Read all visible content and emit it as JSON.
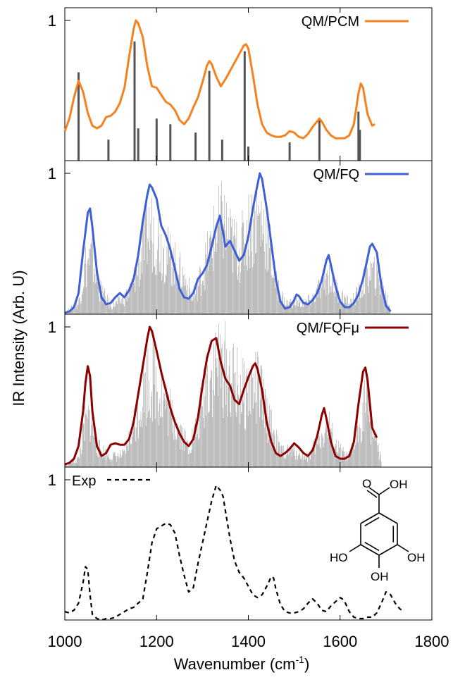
{
  "chart_data": [
    {
      "type": "line",
      "panel": "top",
      "legend": "QM/PCM",
      "color": "#f5821f",
      "ylim": [
        0,
        1
      ],
      "y_tick_label": "1",
      "sticks": [
        {
          "x": 1030,
          "h": 0.63
        },
        {
          "x": 1095,
          "h": 0.15
        },
        {
          "x": 1152,
          "h": 0.85
        },
        {
          "x": 1160,
          "h": 0.23
        },
        {
          "x": 1200,
          "h": 0.3
        },
        {
          "x": 1230,
          "h": 0.26
        },
        {
          "x": 1285,
          "h": 0.2
        },
        {
          "x": 1315,
          "h": 0.64
        },
        {
          "x": 1343,
          "h": 0.15
        },
        {
          "x": 1392,
          "h": 0.78
        },
        {
          "x": 1400,
          "h": 0.1
        },
        {
          "x": 1490,
          "h": 0.13
        },
        {
          "x": 1555,
          "h": 0.29
        },
        {
          "x": 1640,
          "h": 0.35
        },
        {
          "x": 1643,
          "h": 0.22
        }
      ],
      "series": [
        {
          "name": "QM/PCM",
          "x": [
            1000,
            1010,
            1020,
            1030,
            1040,
            1050,
            1060,
            1070,
            1080,
            1090,
            1100,
            1110,
            1120,
            1130,
            1140,
            1150,
            1155,
            1160,
            1170,
            1180,
            1190,
            1200,
            1210,
            1220,
            1230,
            1240,
            1250,
            1260,
            1270,
            1280,
            1290,
            1300,
            1310,
            1315,
            1320,
            1330,
            1340,
            1350,
            1360,
            1370,
            1380,
            1390,
            1395,
            1400,
            1410,
            1420,
            1430,
            1440,
            1450,
            1460,
            1470,
            1480,
            1490,
            1500,
            1510,
            1520,
            1530,
            1540,
            1550,
            1555,
            1560,
            1570,
            1580,
            1590,
            1600,
            1610,
            1620,
            1630,
            1640,
            1645,
            1650,
            1660,
            1670,
            1676
          ],
          "y": [
            0.21,
            0.3,
            0.45,
            0.57,
            0.49,
            0.34,
            0.25,
            0.23,
            0.25,
            0.31,
            0.32,
            0.35,
            0.41,
            0.52,
            0.74,
            0.94,
            1.0,
            0.98,
            0.88,
            0.67,
            0.53,
            0.52,
            0.47,
            0.42,
            0.4,
            0.36,
            0.29,
            0.26,
            0.3,
            0.38,
            0.45,
            0.56,
            0.68,
            0.71,
            0.69,
            0.6,
            0.53,
            0.58,
            0.64,
            0.7,
            0.76,
            0.82,
            0.83,
            0.8,
            0.61,
            0.4,
            0.26,
            0.2,
            0.18,
            0.17,
            0.17,
            0.18,
            0.21,
            0.2,
            0.17,
            0.16,
            0.19,
            0.24,
            0.28,
            0.3,
            0.28,
            0.22,
            0.18,
            0.16,
            0.16,
            0.16,
            0.18,
            0.26,
            0.48,
            0.55,
            0.52,
            0.33,
            0.25,
            0.26
          ]
        }
      ]
    },
    {
      "type": "line",
      "panel": "second",
      "legend": "QM/FQ",
      "color": "#3f5fd6",
      "ylim": [
        0,
        1
      ],
      "y_tick_label": "1",
      "series": [
        {
          "name": "QM/FQ",
          "x": [
            1000,
            1010,
            1020,
            1030,
            1040,
            1050,
            1055,
            1060,
            1070,
            1080,
            1090,
            1100,
            1110,
            1120,
            1130,
            1140,
            1150,
            1160,
            1170,
            1180,
            1185,
            1190,
            1200,
            1210,
            1220,
            1230,
            1240,
            1250,
            1260,
            1270,
            1280,
            1290,
            1300,
            1310,
            1320,
            1330,
            1338,
            1345,
            1350,
            1360,
            1370,
            1380,
            1390,
            1400,
            1410,
            1420,
            1425,
            1430,
            1440,
            1450,
            1460,
            1470,
            1480,
            1490,
            1500,
            1505,
            1510,
            1520,
            1530,
            1540,
            1550,
            1560,
            1570,
            1575,
            1580,
            1590,
            1600,
            1610,
            1620,
            1630,
            1640,
            1650,
            1660,
            1665,
            1670,
            1680,
            1690,
            1700,
            1710
          ],
          "y": [
            0.01,
            0.02,
            0.05,
            0.15,
            0.45,
            0.72,
            0.75,
            0.62,
            0.3,
            0.12,
            0.07,
            0.08,
            0.12,
            0.15,
            0.12,
            0.17,
            0.25,
            0.42,
            0.66,
            0.85,
            0.92,
            0.9,
            0.82,
            0.63,
            0.56,
            0.46,
            0.32,
            0.18,
            0.12,
            0.11,
            0.15,
            0.25,
            0.29,
            0.35,
            0.48,
            0.62,
            0.7,
            0.58,
            0.48,
            0.52,
            0.45,
            0.38,
            0.42,
            0.55,
            0.75,
            0.92,
            1.0,
            0.96,
            0.75,
            0.5,
            0.25,
            0.09,
            0.04,
            0.05,
            0.1,
            0.14,
            0.13,
            0.08,
            0.07,
            0.1,
            0.15,
            0.24,
            0.38,
            0.42,
            0.35,
            0.2,
            0.09,
            0.05,
            0.05,
            0.08,
            0.14,
            0.25,
            0.4,
            0.48,
            0.5,
            0.44,
            0.2,
            0.06,
            0.02
          ]
        }
      ],
      "grey_envelope": {
        "x": [
          1000,
          1030,
          1045,
          1060,
          1075,
          1100,
          1120,
          1140,
          1160,
          1180,
          1195,
          1210,
          1230,
          1260,
          1280,
          1300,
          1330,
          1345,
          1360,
          1380,
          1400,
          1420,
          1440,
          1460,
          1480,
          1500,
          1520,
          1540,
          1560,
          1575,
          1590,
          1620,
          1640,
          1660,
          1670,
          1690,
          1710
        ],
        "y": [
          0.02,
          0.1,
          0.48,
          0.55,
          0.25,
          0.08,
          0.12,
          0.2,
          0.45,
          0.8,
          0.82,
          0.65,
          0.55,
          0.35,
          0.15,
          0.4,
          0.8,
          0.9,
          0.72,
          0.6,
          0.82,
          0.95,
          0.8,
          0.3,
          0.1,
          0.12,
          0.1,
          0.15,
          0.28,
          0.38,
          0.25,
          0.1,
          0.2,
          0.38,
          0.4,
          0.3,
          0.05
        ]
      }
    },
    {
      "type": "line",
      "panel": "third",
      "legend": "QM/FQFμ",
      "color": "#8b0000",
      "ylim": [
        0,
        1
      ],
      "y_tick_label": "1",
      "series": [
        {
          "name": "QM/FQFμ",
          "x": [
            1000,
            1010,
            1020,
            1030,
            1040,
            1045,
            1050,
            1055,
            1060,
            1070,
            1080,
            1090,
            1100,
            1110,
            1120,
            1130,
            1140,
            1150,
            1160,
            1170,
            1180,
            1185,
            1190,
            1200,
            1210,
            1220,
            1230,
            1240,
            1250,
            1260,
            1270,
            1280,
            1290,
            1300,
            1310,
            1320,
            1330,
            1340,
            1350,
            1360,
            1370,
            1380,
            1390,
            1400,
            1410,
            1415,
            1420,
            1430,
            1440,
            1450,
            1460,
            1470,
            1480,
            1490,
            1500,
            1510,
            1520,
            1530,
            1540,
            1550,
            1560,
            1565,
            1570,
            1580,
            1590,
            1600,
            1610,
            1620,
            1630,
            1640,
            1650,
            1655,
            1660,
            1670,
            1680
          ],
          "y": [
            0.02,
            0.03,
            0.06,
            0.15,
            0.4,
            0.6,
            0.72,
            0.65,
            0.4,
            0.15,
            0.08,
            0.1,
            0.16,
            0.17,
            0.16,
            0.16,
            0.2,
            0.32,
            0.52,
            0.72,
            0.92,
            1.0,
            0.97,
            0.83,
            0.68,
            0.55,
            0.42,
            0.32,
            0.24,
            0.18,
            0.15,
            0.2,
            0.35,
            0.58,
            0.78,
            0.9,
            0.92,
            0.75,
            0.63,
            0.58,
            0.48,
            0.45,
            0.55,
            0.64,
            0.72,
            0.74,
            0.7,
            0.55,
            0.32,
            0.18,
            0.1,
            0.08,
            0.1,
            0.13,
            0.17,
            0.14,
            0.1,
            0.08,
            0.12,
            0.22,
            0.37,
            0.42,
            0.35,
            0.18,
            0.08,
            0.06,
            0.06,
            0.08,
            0.18,
            0.45,
            0.68,
            0.71,
            0.62,
            0.28,
            0.21
          ]
        }
      ],
      "grey_envelope": {
        "x": [
          1000,
          1030,
          1045,
          1055,
          1070,
          1100,
          1130,
          1160,
          1180,
          1195,
          1210,
          1240,
          1270,
          1290,
          1310,
          1330,
          1350,
          1370,
          1390,
          1410,
          1425,
          1440,
          1470,
          1500,
          1530,
          1560,
          1575,
          1590,
          1620,
          1640,
          1655,
          1670,
          1690
        ],
        "y": [
          0.02,
          0.08,
          0.42,
          0.48,
          0.2,
          0.1,
          0.12,
          0.55,
          0.85,
          0.88,
          0.7,
          0.45,
          0.2,
          0.4,
          0.85,
          0.98,
          0.95,
          0.82,
          0.7,
          0.78,
          0.75,
          0.5,
          0.15,
          0.15,
          0.1,
          0.3,
          0.4,
          0.2,
          0.08,
          0.35,
          0.7,
          0.4,
          0.05
        ]
      }
    },
    {
      "type": "line",
      "panel": "bottom",
      "legend": "Exp",
      "color": "#000000",
      "line_style": "dashed",
      "ylim": [
        0,
        1
      ],
      "y_tick_label": "1",
      "xlim": [
        1000,
        1800
      ],
      "x_ticks": [
        1000,
        1200,
        1400,
        1600,
        1800
      ],
      "x_tick_labels": [
        "1000",
        "1200",
        "1400",
        "1600",
        "1800"
      ],
      "series": [
        {
          "name": "Exp",
          "x": [
            1000,
            1010,
            1020,
            1030,
            1040,
            1045,
            1050,
            1055,
            1060,
            1070,
            1080,
            1090,
            1100,
            1110,
            1120,
            1130,
            1140,
            1150,
            1160,
            1170,
            1180,
            1190,
            1200,
            1210,
            1220,
            1230,
            1240,
            1250,
            1260,
            1270,
            1280,
            1290,
            1300,
            1310,
            1320,
            1330,
            1340,
            1345,
            1350,
            1360,
            1370,
            1380,
            1390,
            1400,
            1410,
            1420,
            1430,
            1440,
            1450,
            1455,
            1460,
            1470,
            1480,
            1490,
            1500,
            1510,
            1520,
            1530,
            1540,
            1550,
            1560,
            1570,
            1580,
            1590,
            1600,
            1605,
            1610,
            1620,
            1630,
            1640,
            1650,
            1660,
            1670,
            1680,
            1690,
            1700,
            1710,
            1720,
            1730,
            1740
          ],
          "y": [
            0.06,
            0.05,
            0.07,
            0.12,
            0.27,
            0.38,
            0.36,
            0.18,
            0.04,
            0.01,
            0.0,
            0.01,
            0.01,
            0.02,
            0.04,
            0.06,
            0.08,
            0.09,
            0.12,
            0.15,
            0.34,
            0.55,
            0.65,
            0.67,
            0.69,
            0.68,
            0.62,
            0.46,
            0.32,
            0.2,
            0.23,
            0.4,
            0.55,
            0.7,
            0.85,
            0.96,
            0.92,
            0.88,
            0.78,
            0.58,
            0.42,
            0.34,
            0.3,
            0.24,
            0.18,
            0.16,
            0.18,
            0.24,
            0.31,
            0.3,
            0.22,
            0.11,
            0.06,
            0.05,
            0.05,
            0.06,
            0.08,
            0.12,
            0.15,
            0.12,
            0.07,
            0.06,
            0.1,
            0.13,
            0.16,
            0.15,
            0.13,
            0.06,
            0.02,
            0.01,
            0.01,
            0.02,
            0.02,
            0.05,
            0.12,
            0.2,
            0.18,
            0.12,
            0.08,
            0.06
          ]
        }
      ]
    }
  ],
  "axes": {
    "ylabel": "IR Intensity (Arb. U)",
    "xlabel": "Wavenumber (cm",
    "xlabel_sup": "-1",
    "xlabel_end": ")"
  },
  "molecule": {
    "labels": [
      "O",
      "OH",
      "HO",
      "OH",
      "OH"
    ]
  }
}
